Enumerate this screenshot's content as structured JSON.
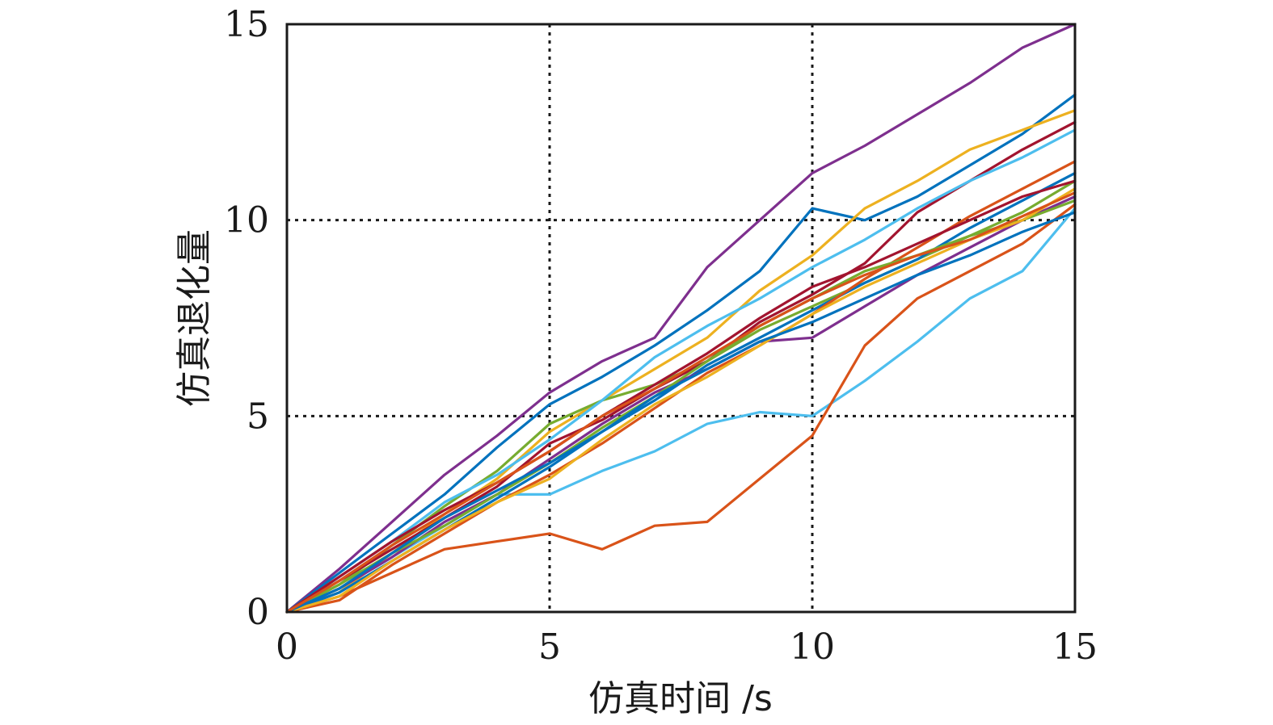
{
  "chart_data": {
    "type": "line",
    "xlabel": "仿真时间 /s",
    "ylabel": "仿真退化量",
    "xlim": [
      0,
      15
    ],
    "ylim": [
      0,
      15
    ],
    "xticks": [
      0,
      5,
      10,
      15
    ],
    "yticks": [
      0,
      5,
      10,
      15
    ],
    "xtick_labels": [
      "0",
      "5",
      "10",
      "15"
    ],
    "ytick_labels": [
      "0",
      "5",
      "10",
      "15"
    ],
    "grid": true,
    "grid_style": "dotted",
    "x": [
      0,
      1,
      2,
      3,
      4,
      5,
      6,
      7,
      8,
      9,
      10,
      11,
      12,
      13,
      14,
      15
    ],
    "series": [
      {
        "color": "#7E2F8E",
        "values": [
          0,
          1.1,
          2.3,
          3.5,
          4.5,
          5.6,
          6.4,
          7.0,
          8.8,
          10.0,
          11.2,
          11.9,
          12.7,
          13.5,
          14.4,
          15.0
        ]
      },
      {
        "color": "#0072BD",
        "values": [
          0,
          1.0,
          2.0,
          3.0,
          4.2,
          5.3,
          6.0,
          6.8,
          7.7,
          8.7,
          10.3,
          10.0,
          10.6,
          11.4,
          12.2,
          13.2
        ]
      },
      {
        "color": "#4DBEEE",
        "values": [
          0,
          0.6,
          1.4,
          2.2,
          3.0,
          3.0,
          3.6,
          4.1,
          4.8,
          5.1,
          5.0,
          5.9,
          6.9,
          8.0,
          8.7,
          10.3
        ]
      },
      {
        "color": "#D95319",
        "values": [
          0,
          0.4,
          1.0,
          1.6,
          1.8,
          2.0,
          1.6,
          2.2,
          2.3,
          3.4,
          4.5,
          6.8,
          8.0,
          8.7,
          9.4,
          10.4
        ]
      },
      {
        "color": "#EDB120",
        "values": [
          0,
          0.5,
          1.5,
          2.5,
          3.4,
          4.6,
          5.4,
          6.2,
          7.0,
          8.2,
          9.1,
          10.3,
          11.0,
          11.8,
          12.3,
          12.8
        ]
      },
      {
        "color": "#77AC30",
        "values": [
          0,
          0.7,
          1.7,
          2.7,
          3.6,
          4.8,
          5.4,
          5.8,
          6.4,
          7.2,
          7.8,
          8.4,
          9.0,
          9.6,
          10.2,
          11.0
        ]
      },
      {
        "color": "#A2142F",
        "values": [
          0,
          0.8,
          1.6,
          2.4,
          3.2,
          4.3,
          4.9,
          5.7,
          6.4,
          7.4,
          8.1,
          8.9,
          10.2,
          11.0,
          11.8,
          12.5
        ]
      },
      {
        "color": "#0072BD",
        "values": [
          0,
          0.5,
          1.3,
          2.1,
          2.9,
          3.7,
          4.6,
          5.4,
          6.3,
          7.0,
          7.7,
          8.4,
          9.0,
          9.8,
          10.5,
          11.2
        ]
      },
      {
        "color": "#D95319",
        "values": [
          0,
          0.3,
          1.2,
          2.0,
          2.8,
          3.5,
          4.3,
          5.2,
          6.1,
          6.8,
          7.6,
          8.5,
          9.3,
          10.1,
          10.8,
          11.5
        ]
      },
      {
        "color": "#7E2F8E",
        "values": [
          0,
          0.6,
          1.4,
          2.3,
          3.0,
          3.9,
          4.8,
          5.6,
          6.2,
          6.9,
          7.0,
          7.8,
          8.6,
          9.3,
          10.0,
          10.6
        ]
      },
      {
        "color": "#4DBEEE",
        "values": [
          0,
          0.9,
          1.8,
          2.8,
          3.5,
          4.4,
          5.4,
          6.5,
          7.3,
          8.0,
          8.8,
          9.5,
          10.3,
          11.0,
          11.6,
          12.3
        ]
      },
      {
        "color": "#77AC30",
        "values": [
          0,
          0.7,
          1.5,
          2.2,
          3.0,
          3.8,
          4.7,
          5.5,
          6.4,
          7.3,
          8.0,
          8.7,
          9.1,
          9.6,
          10.0,
          10.5
        ]
      },
      {
        "color": "#EDB120",
        "values": [
          0,
          0.4,
          1.3,
          2.1,
          2.8,
          3.4,
          4.4,
          5.3,
          6.0,
          6.8,
          7.6,
          8.3,
          8.9,
          9.5,
          10.0,
          10.8
        ]
      },
      {
        "color": "#A2142F",
        "values": [
          0,
          0.9,
          1.8,
          2.6,
          3.3,
          4.1,
          5.0,
          5.8,
          6.6,
          7.5,
          8.3,
          8.8,
          9.4,
          10.0,
          10.6,
          11.0
        ]
      },
      {
        "color": "#0072BD",
        "values": [
          0,
          0.6,
          1.5,
          2.4,
          3.1,
          3.8,
          4.6,
          5.5,
          6.2,
          6.9,
          7.4,
          8.0,
          8.6,
          9.1,
          9.7,
          10.2
        ]
      },
      {
        "color": "#D95319",
        "values": [
          0,
          0.8,
          1.7,
          2.5,
          3.3,
          4.1,
          5.0,
          5.7,
          6.5,
          7.3,
          8.0,
          8.6,
          9.1,
          9.5,
          10.1,
          10.7
        ]
      }
    ]
  }
}
